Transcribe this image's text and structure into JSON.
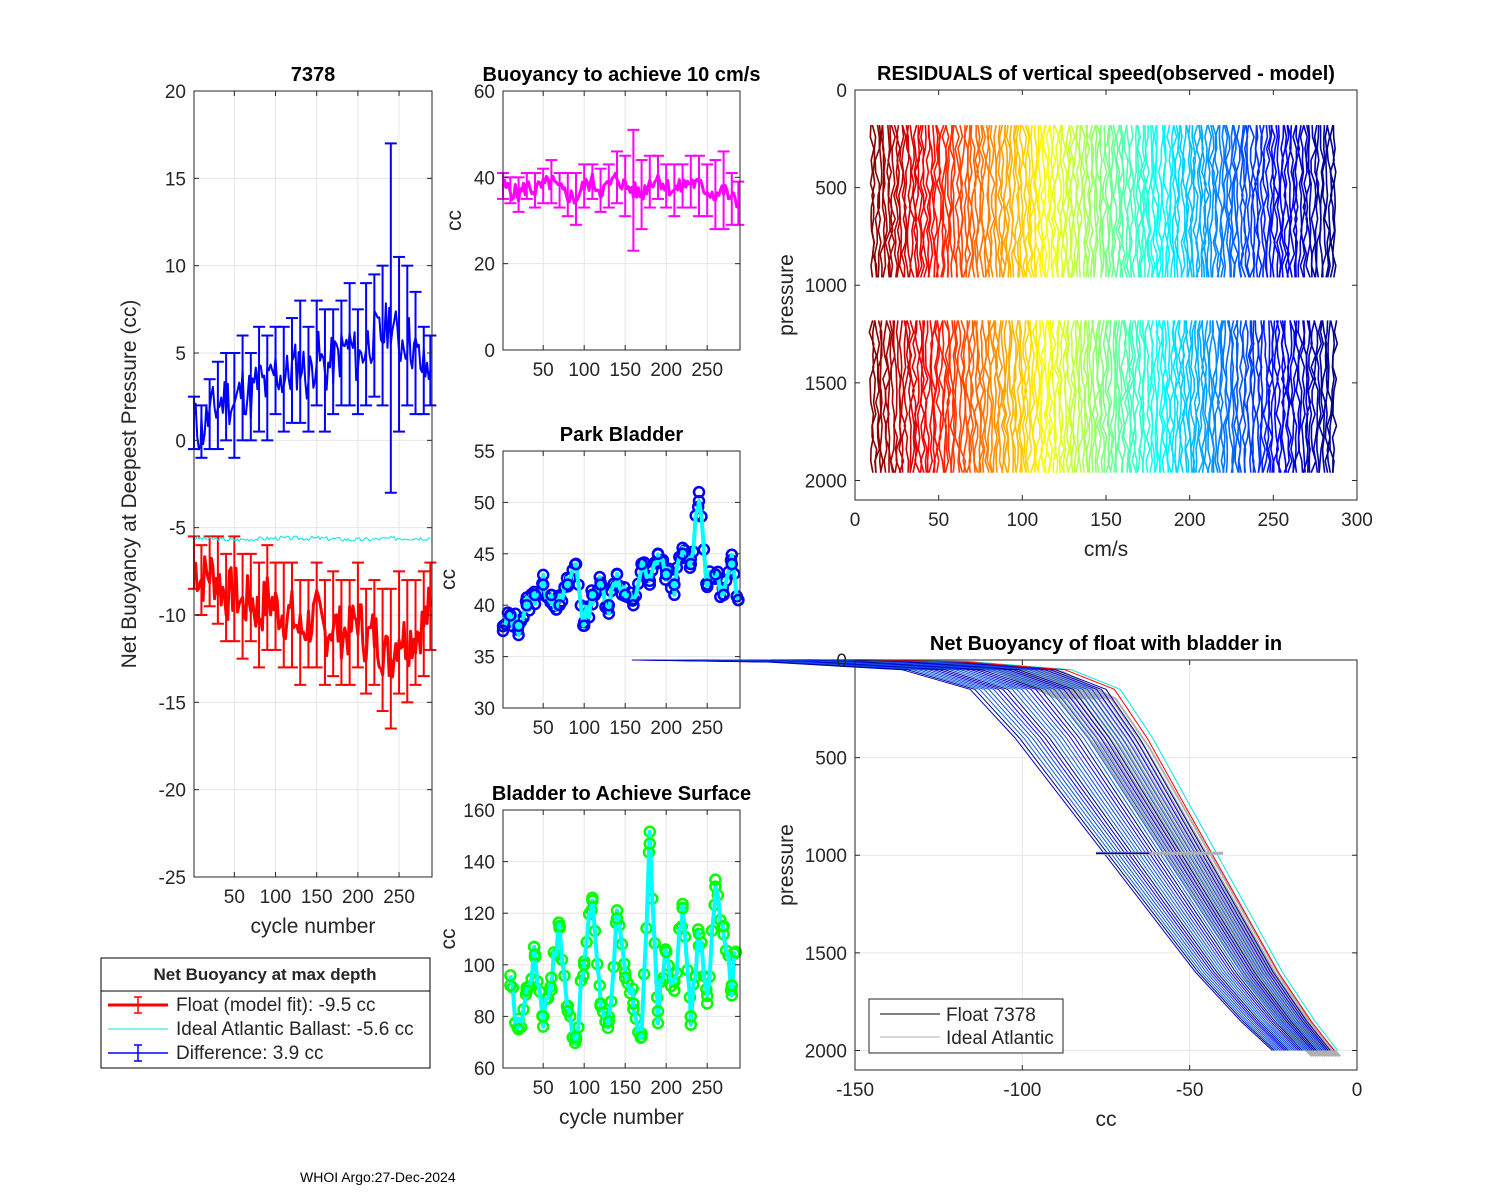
{
  "figure": {
    "float_id": "7378",
    "footer": "WHOI Argo:27-Dec-2024"
  },
  "colors": {
    "float_fit": "#ff0000",
    "ideal_ballast": "#00e5e5",
    "difference": "#0000ff",
    "buoyancy_10": "#ff00ff",
    "park_marker": "#0000ff",
    "park_line": "#00ffff",
    "surface_marker": "#00ff00",
    "surface_line": "#00ffff",
    "float_profile": "#000000",
    "ideal_profile": "#b0b0b0"
  },
  "legend": {
    "title": "Net Buoyancy at max depth",
    "entries": [
      {
        "label": "Float (model fit):  -9.5 cc",
        "color": "#ff0000",
        "style": "errorbar"
      },
      {
        "label": "Ideal Atlantic Ballast:  -5.6 cc",
        "color": "#00e5e5",
        "style": "line"
      },
      {
        "label": "Difference:   3.9 cc",
        "color": "#0000ff",
        "style": "errorbar"
      }
    ]
  },
  "chart_data": [
    {
      "id": "net_buoyancy",
      "type": "line",
      "title": "7378",
      "xlabel": "cycle number",
      "ylabel": "Net Buoyancy at Deepest Pressure (cc)",
      "xlim": [
        1,
        290
      ],
      "ylim": [
        -25,
        20
      ],
      "xticks": [
        50,
        100,
        150,
        200,
        250
      ],
      "yticks": [
        -25,
        -20,
        -15,
        -10,
        -5,
        0,
        5,
        10,
        15,
        20
      ],
      "grid": true,
      "series": [
        {
          "name": "Float (model fit)",
          "color": "#ff0000",
          "errorbars": true,
          "x": [
            1,
            10,
            20,
            30,
            40,
            50,
            60,
            70,
            80,
            90,
            100,
            110,
            120,
            130,
            140,
            150,
            160,
            170,
            180,
            190,
            200,
            210,
            220,
            230,
            240,
            250,
            260,
            270,
            280,
            288
          ],
          "y": [
            -7,
            -8,
            -7.5,
            -8,
            -9,
            -8.5,
            -9.5,
            -9,
            -10,
            -9,
            -9.5,
            -10,
            -10,
            -11,
            -10.5,
            -10,
            -11,
            -10.5,
            -11,
            -11,
            -10,
            -11.5,
            -11,
            -12,
            -12.5,
            -11,
            -11.5,
            -11,
            -10.5,
            -9.5
          ],
          "err": [
            1.5,
            2,
            2,
            2.5,
            2.5,
            3,
            3,
            2.5,
            3,
            3,
            2.5,
            3,
            3,
            3,
            2.5,
            3,
            3,
            3,
            3,
            3,
            3,
            3,
            3,
            3.5,
            4,
            3.5,
            3.5,
            3,
            3,
            2.5
          ]
        },
        {
          "name": "Ideal Atlantic Ballast",
          "color": "#00e5e5",
          "errorbars": false,
          "x": [
            1,
            50,
            100,
            150,
            200,
            250,
            288
          ],
          "y": [
            -5.6,
            -5.7,
            -5.6,
            -5.6,
            -5.7,
            -5.6,
            -5.6
          ]
        },
        {
          "name": "Difference",
          "color": "#0000ff",
          "errorbars": true,
          "x": [
            1,
            10,
            20,
            30,
            40,
            50,
            60,
            70,
            80,
            90,
            100,
            110,
            120,
            130,
            140,
            150,
            160,
            170,
            180,
            190,
            200,
            210,
            220,
            230,
            240,
            250,
            260,
            270,
            280,
            288
          ],
          "y": [
            1,
            0.5,
            1.5,
            2,
            2.5,
            2,
            3,
            2.5,
            3.5,
            3,
            4,
            3.5,
            4,
            4.5,
            3.5,
            5,
            4,
            4.5,
            5,
            5.5,
            4.5,
            5.5,
            6,
            6,
            7,
            5.5,
            6,
            5,
            4,
            4
          ],
          "err": [
            1.5,
            1.5,
            2,
            2.5,
            2.5,
            3,
            3,
            2.5,
            3,
            3,
            2.5,
            3,
            3,
            3.5,
            3,
            3,
            3.5,
            3,
            3,
            3.5,
            3,
            3.5,
            3.5,
            4,
            10,
            5,
            4,
            3.5,
            2.5,
            2
          ]
        }
      ]
    },
    {
      "id": "buoyancy_10",
      "type": "line",
      "title": "Buoyancy to achieve 10 cm/s",
      "xlabel": "",
      "ylabel": "cc",
      "xlim": [
        1,
        290
      ],
      "ylim": [
        0,
        60
      ],
      "xticks": [
        50,
        100,
        150,
        200,
        250
      ],
      "yticks": [
        0,
        20,
        40,
        60
      ],
      "grid": true,
      "series": [
        {
          "name": "Buoyancy to achieve 10 cm/s",
          "color": "#ff00ff",
          "errorbars": true,
          "x": [
            1,
            10,
            20,
            30,
            40,
            50,
            60,
            70,
            80,
            90,
            100,
            110,
            120,
            130,
            140,
            150,
            160,
            170,
            180,
            190,
            200,
            210,
            220,
            230,
            240,
            250,
            260,
            270,
            280,
            288
          ],
          "y": [
            38,
            37,
            36,
            38,
            37,
            38,
            39,
            37,
            36,
            35,
            38,
            39,
            37,
            38,
            40,
            38,
            37,
            36,
            39,
            40,
            38,
            37,
            38,
            39,
            38,
            37,
            36,
            37,
            35,
            34
          ],
          "err": [
            3,
            3,
            4,
            3,
            4,
            4,
            5,
            4,
            5,
            6,
            5,
            4,
            5,
            5,
            6,
            7,
            14,
            8,
            6,
            5,
            5,
            6,
            5,
            6,
            7,
            6,
            8,
            9,
            6,
            5
          ]
        }
      ]
    },
    {
      "id": "park_bladder",
      "type": "line",
      "title": "Park Bladder",
      "xlabel": "",
      "ylabel": "cc",
      "xlim": [
        1,
        290
      ],
      "ylim": [
        30,
        55
      ],
      "xticks": [
        50,
        100,
        150,
        200,
        250
      ],
      "yticks": [
        30,
        35,
        40,
        45,
        50,
        55
      ],
      "grid": true,
      "series": [
        {
          "name": "Park Bladder",
          "color": "#00ffff",
          "marker_color": "#0000ff",
          "x": [
            1,
            10,
            20,
            30,
            40,
            50,
            60,
            70,
            80,
            90,
            100,
            110,
            120,
            130,
            140,
            150,
            160,
            170,
            180,
            190,
            200,
            210,
            220,
            230,
            240,
            250,
            260,
            270,
            280,
            288
          ],
          "y": [
            37.5,
            39,
            38,
            40,
            41,
            42,
            41,
            40,
            42,
            44,
            38,
            41,
            42,
            40,
            43,
            41,
            40,
            44,
            42,
            45,
            43,
            42,
            45,
            44,
            51,
            42,
            43,
            41,
            44,
            40.5
          ]
        }
      ]
    },
    {
      "id": "bladder_surface",
      "type": "line",
      "title": "Bladder to Achieve Surface",
      "xlabel": "cycle number",
      "ylabel": "cc",
      "xlim": [
        1,
        290
      ],
      "ylim": [
        60,
        160
      ],
      "xticks": [
        50,
        100,
        150,
        200,
        250
      ],
      "yticks": [
        60,
        80,
        100,
        120,
        140,
        160
      ],
      "grid": true,
      "series": [
        {
          "name": "Bladder to Achieve Surface",
          "color": "#00ffff",
          "marker_color": "#00ff00",
          "x": [
            10,
            20,
            30,
            40,
            50,
            60,
            70,
            80,
            90,
            100,
            110,
            120,
            130,
            140,
            150,
            160,
            170,
            180,
            190,
            200,
            210,
            220,
            230,
            240,
            250,
            260,
            270,
            280,
            285
          ],
          "y": [
            92,
            75,
            90,
            104,
            80,
            95,
            115,
            82,
            72,
            100,
            126,
            85,
            78,
            118,
            95,
            85,
            72,
            147,
            82,
            105,
            90,
            122,
            80,
            112,
            85,
            133,
            115,
            92,
            105
          ]
        }
      ]
    },
    {
      "id": "residuals",
      "type": "line",
      "title": "RESIDUALS of vertical speed(observed - model)",
      "xlabel": "cm/s",
      "ylabel": "pressure",
      "xlim": [
        0,
        300
      ],
      "ylim": [
        0,
        2100
      ],
      "y_reversed": true,
      "xticks": [
        0,
        50,
        100,
        150,
        200,
        250,
        300
      ],
      "yticks": [
        0,
        500,
        1000,
        1500,
        2000
      ],
      "grid": false,
      "profile_offsets": [
        10,
        30,
        50,
        70,
        90,
        110,
        130,
        150,
        170,
        190,
        210,
        230,
        250,
        270,
        288
      ],
      "profile_segments": [
        [
          180,
          1000
        ],
        [
          1180,
          2000
        ]
      ]
    },
    {
      "id": "net_buoyancy_profile",
      "type": "line",
      "title": "Net Buoyancy of float with bladder in",
      "xlabel": "cc",
      "ylabel": "pressure",
      "xlim": [
        -150,
        0
      ],
      "ylim": [
        0,
        2100
      ],
      "y_reversed": true,
      "xticks": [
        -150,
        -100,
        -50,
        0
      ],
      "yticks": [
        0,
        500,
        1000,
        1500,
        2000
      ],
      "grid": true,
      "series": [
        {
          "name": "Float 7378",
          "color": "#000000",
          "x": [
            -150,
            -120,
            -90,
            -75,
            -65,
            -55,
            -45,
            -35,
            -25,
            -15,
            -8
          ],
          "y": [
            0,
            10,
            50,
            150,
            400,
            700,
            1000,
            1300,
            1600,
            1850,
            2000
          ]
        },
        {
          "name": "Ideal Atlantic",
          "color": "#b0b0b0",
          "x": [
            -148,
            -115,
            -88,
            -72,
            -62,
            -52,
            -42,
            -32,
            -22,
            -12,
            -5
          ],
          "y": [
            0,
            10,
            60,
            200,
            450,
            750,
            1050,
            1350,
            1650,
            1900,
            2030
          ]
        }
      ],
      "legend": [
        "Float 7378",
        "Ideal Atlantic"
      ]
    }
  ]
}
